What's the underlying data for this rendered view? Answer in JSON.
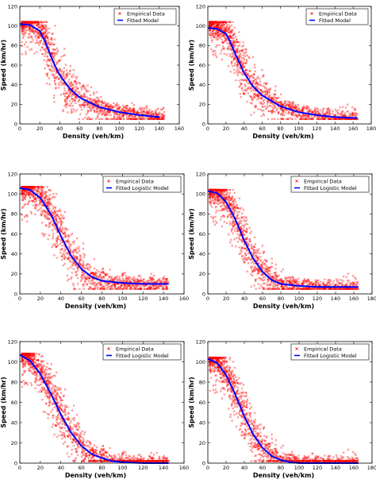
{
  "chart_data": [
    {
      "type": "scatter",
      "xlabel": "Density (veh/km)",
      "ylabel": "Speed (km/hr)",
      "xlim": [
        0,
        160
      ],
      "ylim": [
        0,
        120
      ],
      "xticks": [
        "0",
        "20",
        "40",
        "60",
        "80",
        "100",
        "120",
        "140",
        "160"
      ],
      "yticks": [
        "0",
        "20",
        "40",
        "60",
        "80",
        "100",
        "120"
      ],
      "legend_position": "top-right",
      "series": [
        {
          "name": "Empirical Data",
          "marker": "x",
          "color": "#ff0000",
          "data_range_x": [
            2,
            145
          ],
          "peak_speed": 104,
          "min_speed": 5
        },
        {
          "name": "Fitted Model",
          "marker": "line",
          "color": "#0000ff",
          "x": [
            0,
            10,
            20,
            25,
            30,
            35,
            40,
            50,
            60,
            80,
            100,
            120,
            140
          ],
          "y": [
            102,
            101,
            95,
            85,
            72,
            60,
            50,
            36,
            27,
            17,
            12,
            9,
            7
          ]
        }
      ]
    },
    {
      "type": "scatter",
      "xlabel": "Density (veh/km)",
      "ylabel": "Speed (km/hr)",
      "xlim": [
        0,
        180
      ],
      "ylim": [
        0,
        120
      ],
      "xticks": [
        "0",
        "20",
        "40",
        "60",
        "80",
        "100",
        "120",
        "140",
        "160",
        "180"
      ],
      "yticks": [
        "0",
        "20",
        "40",
        "60",
        "80",
        "100",
        "120"
      ],
      "legend_position": "top-right",
      "series": [
        {
          "name": "Empirical Data",
          "marker": "x",
          "color": "#ff0000",
          "data_range_x": [
            2,
            165
          ],
          "peak_speed": 104,
          "min_speed": 5
        },
        {
          "name": "Fitted Model",
          "marker": "line",
          "color": "#0000ff",
          "x": [
            0,
            10,
            20,
            25,
            30,
            40,
            50,
            60,
            80,
            100,
            120,
            140,
            165
          ],
          "y": [
            98,
            97,
            92,
            83,
            72,
            52,
            38,
            29,
            18,
            12,
            9,
            7,
            6
          ]
        }
      ]
    },
    {
      "type": "scatter",
      "xlabel": "Density (veh/km)",
      "ylabel": "Speed (km/hr)",
      "xlim": [
        0,
        160
      ],
      "ylim": [
        0,
        120
      ],
      "xticks": [
        "0",
        "20",
        "40",
        "60",
        "80",
        "100",
        "120",
        "140",
        "160"
      ],
      "yticks": [
        "0",
        "20",
        "40",
        "60",
        "80",
        "100",
        "120"
      ],
      "legend_position": "top-right",
      "series": [
        {
          "name": "Empirical Data",
          "marker": "x",
          "color": "#ff0000",
          "data_range_x": [
            2,
            145
          ],
          "peak_speed": 107,
          "min_speed": 5
        },
        {
          "name": "Fitted Logistic Model",
          "marker": "line",
          "color": "#0000ff",
          "x": [
            0,
            10,
            20,
            30,
            40,
            50,
            60,
            70,
            80,
            100,
            120,
            145
          ],
          "y": [
            106,
            104,
            96,
            80,
            58,
            38,
            25,
            17,
            13,
            11,
            10,
            10
          ]
        }
      ]
    },
    {
      "type": "scatter",
      "xlabel": "Density (veh/km)",
      "ylabel": "Speed (km/hr)",
      "xlim": [
        0,
        180
      ],
      "ylim": [
        0,
        120
      ],
      "xticks": [
        "0",
        "20",
        "40",
        "60",
        "80",
        "100",
        "120",
        "140",
        "160",
        "180"
      ],
      "yticks": [
        "0",
        "20",
        "40",
        "60",
        "80",
        "100",
        "120"
      ],
      "legend_position": "top-right",
      "series": [
        {
          "name": "Empirical Data",
          "marker": "x",
          "color": "#ff0000",
          "data_range_x": [
            2,
            165
          ],
          "peak_speed": 104,
          "min_speed": 5
        },
        {
          "name": "Fitted Logistic Model",
          "marker": "line",
          "color": "#0000ff",
          "x": [
            0,
            10,
            20,
            30,
            40,
            50,
            60,
            70,
            80,
            100,
            120,
            140,
            165
          ],
          "y": [
            103,
            101,
            92,
            75,
            53,
            35,
            22,
            14,
            10,
            8,
            7,
            7,
            7
          ]
        }
      ]
    },
    {
      "type": "scatter",
      "xlabel": "Density (veh/km)",
      "ylabel": "Speed (km/hr)",
      "xlim": [
        0,
        160
      ],
      "ylim": [
        0,
        120
      ],
      "xticks": [
        "0",
        "20",
        "40",
        "60",
        "80",
        "100",
        "120",
        "140",
        "160"
      ],
      "yticks": [
        "0",
        "20",
        "40",
        "60",
        "80",
        "100",
        "120"
      ],
      "legend_position": "top-right",
      "series": [
        {
          "name": "Empirical Data",
          "marker": "x",
          "color": "#ff0000",
          "data_range_x": [
            2,
            145
          ],
          "peak_speed": 108,
          "min_speed": 2
        },
        {
          "name": "Fitted Logistic Model",
          "marker": "line",
          "color": "#0000ff",
          "x": [
            0,
            10,
            20,
            30,
            40,
            50,
            60,
            70,
            80,
            90,
            100,
            120,
            145
          ],
          "y": [
            107,
            101,
            88,
            69,
            48,
            30,
            17,
            9,
            5,
            2,
            1,
            0,
            0
          ]
        }
      ]
    },
    {
      "type": "scatter",
      "xlabel": "Density (veh/km)",
      "ylabel": "Speed (km/hr)",
      "xlim": [
        0,
        180
      ],
      "ylim": [
        0,
        120
      ],
      "xticks": [
        "0",
        "20",
        "40",
        "60",
        "80",
        "100",
        "120",
        "140",
        "160",
        "180"
      ],
      "yticks": [
        "0",
        "20",
        "40",
        "60",
        "80",
        "100",
        "120"
      ],
      "legend_position": "top-right",
      "series": [
        {
          "name": "Empirical Data",
          "marker": "x",
          "color": "#ff0000",
          "data_range_x": [
            2,
            165
          ],
          "peak_speed": 104,
          "min_speed": 2
        },
        {
          "name": "Fitted Logistic Model",
          "marker": "line",
          "color": "#0000ff",
          "x": [
            0,
            10,
            20,
            30,
            40,
            50,
            60,
            70,
            80,
            90,
            100,
            120,
            165
          ],
          "y": [
            103,
            99,
            87,
            68,
            46,
            28,
            15,
            7,
            3,
            1,
            0,
            0,
            0
          ]
        }
      ]
    }
  ]
}
